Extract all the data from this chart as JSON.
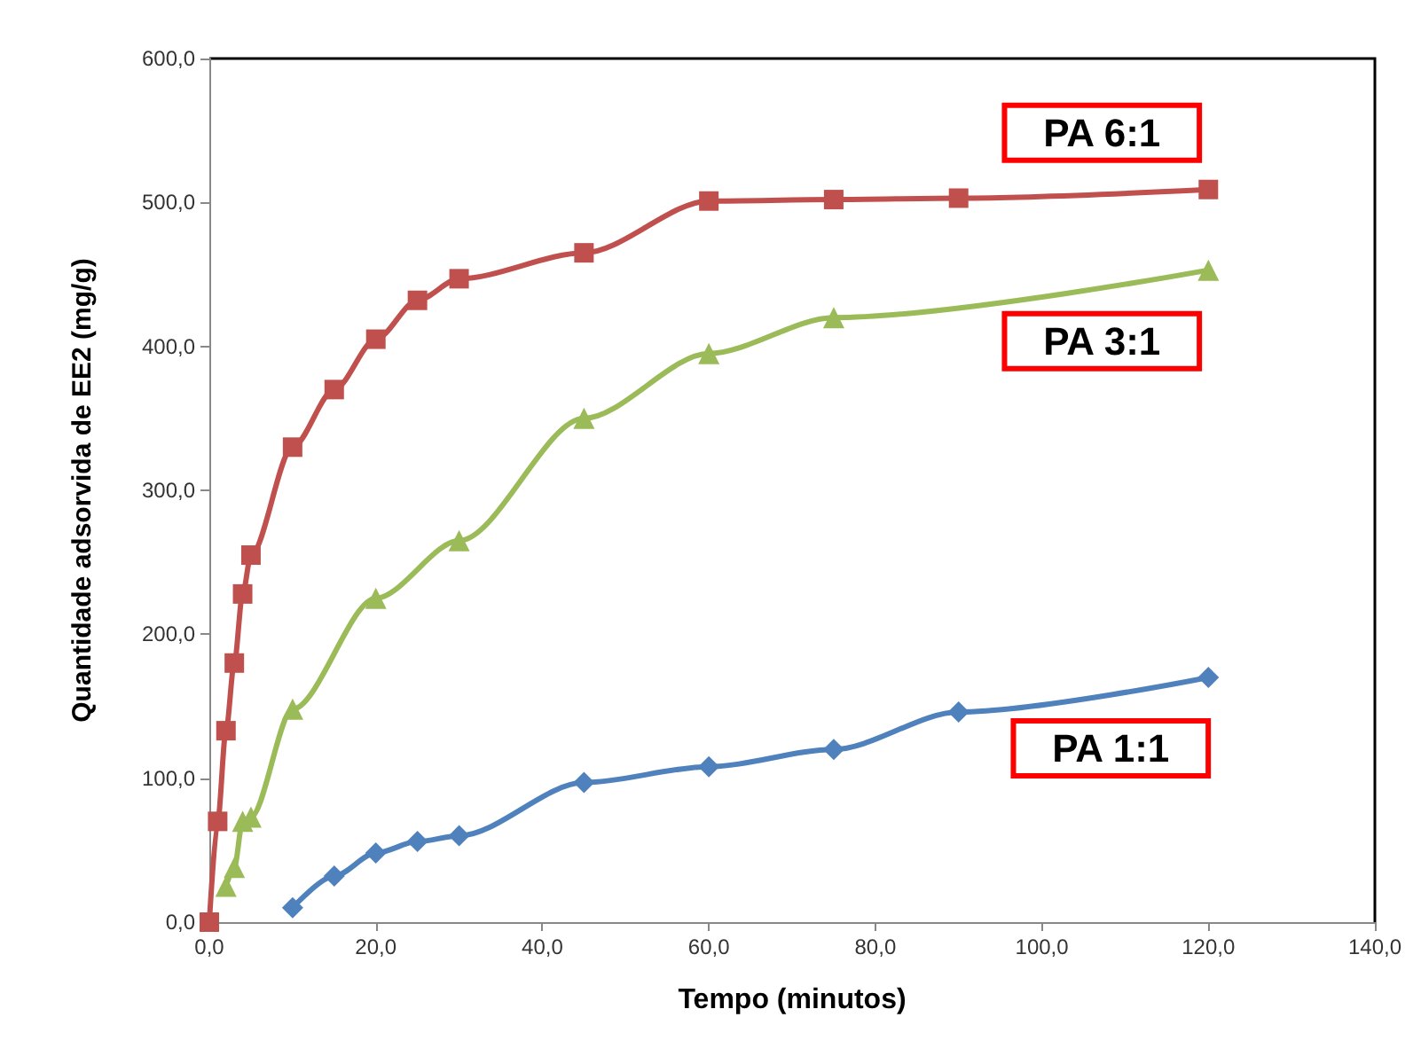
{
  "chart_data": {
    "type": "line",
    "xlabel": "Tempo (minutos)",
    "ylabel": "Quantidade adsorvida de EE2 (mg/g)",
    "xlim": [
      0,
      140
    ],
    "ylim": [
      0,
      600
    ],
    "xticks": [
      {
        "value": 0,
        "label": "0,0"
      },
      {
        "value": 20,
        "label": "20,0"
      },
      {
        "value": 40,
        "label": "40,0"
      },
      {
        "value": 60,
        "label": "60,0"
      },
      {
        "value": 80,
        "label": "80,0"
      },
      {
        "value": 100,
        "label": "100,0"
      },
      {
        "value": 120,
        "label": "120,0"
      },
      {
        "value": 140,
        "label": "140,0"
      }
    ],
    "yticks": [
      {
        "value": 0,
        "label": "0,0"
      },
      {
        "value": 100,
        "label": "100,0"
      },
      {
        "value": 200,
        "label": "200,0"
      },
      {
        "value": 300,
        "label": "300,0"
      },
      {
        "value": 400,
        "label": "400,0"
      },
      {
        "value": 500,
        "label": "500,0"
      },
      {
        "value": 600,
        "label": "600,0"
      }
    ],
    "grid": false,
    "legend": false,
    "series": [
      {
        "name": "PA 6:1",
        "color": "#c0504d",
        "marker": "square",
        "x": [
          0,
          1,
          2,
          3,
          4,
          5,
          10,
          15,
          20,
          25,
          30,
          45,
          60,
          75,
          90,
          120
        ],
        "values": [
          0,
          70,
          133,
          180,
          228,
          255,
          330,
          370,
          405,
          432,
          447,
          465,
          501,
          502,
          503,
          509
        ]
      },
      {
        "name": "PA 3:1",
        "color": "#9bbb59",
        "marker": "triangle",
        "x": [
          2,
          3,
          4,
          5,
          10,
          20,
          30,
          45,
          60,
          75,
          120
        ],
        "values": [
          25,
          38,
          70,
          73,
          148,
          225,
          265,
          350,
          395,
          420,
          453
        ]
      },
      {
        "name": "PA 1:1",
        "color": "#4f81bd",
        "marker": "diamond",
        "x": [
          10,
          15,
          20,
          25,
          30,
          45,
          60,
          75,
          90,
          120
        ],
        "values": [
          10,
          32,
          48,
          56,
          60,
          97,
          108,
          120,
          146,
          170
        ]
      }
    ]
  }
}
